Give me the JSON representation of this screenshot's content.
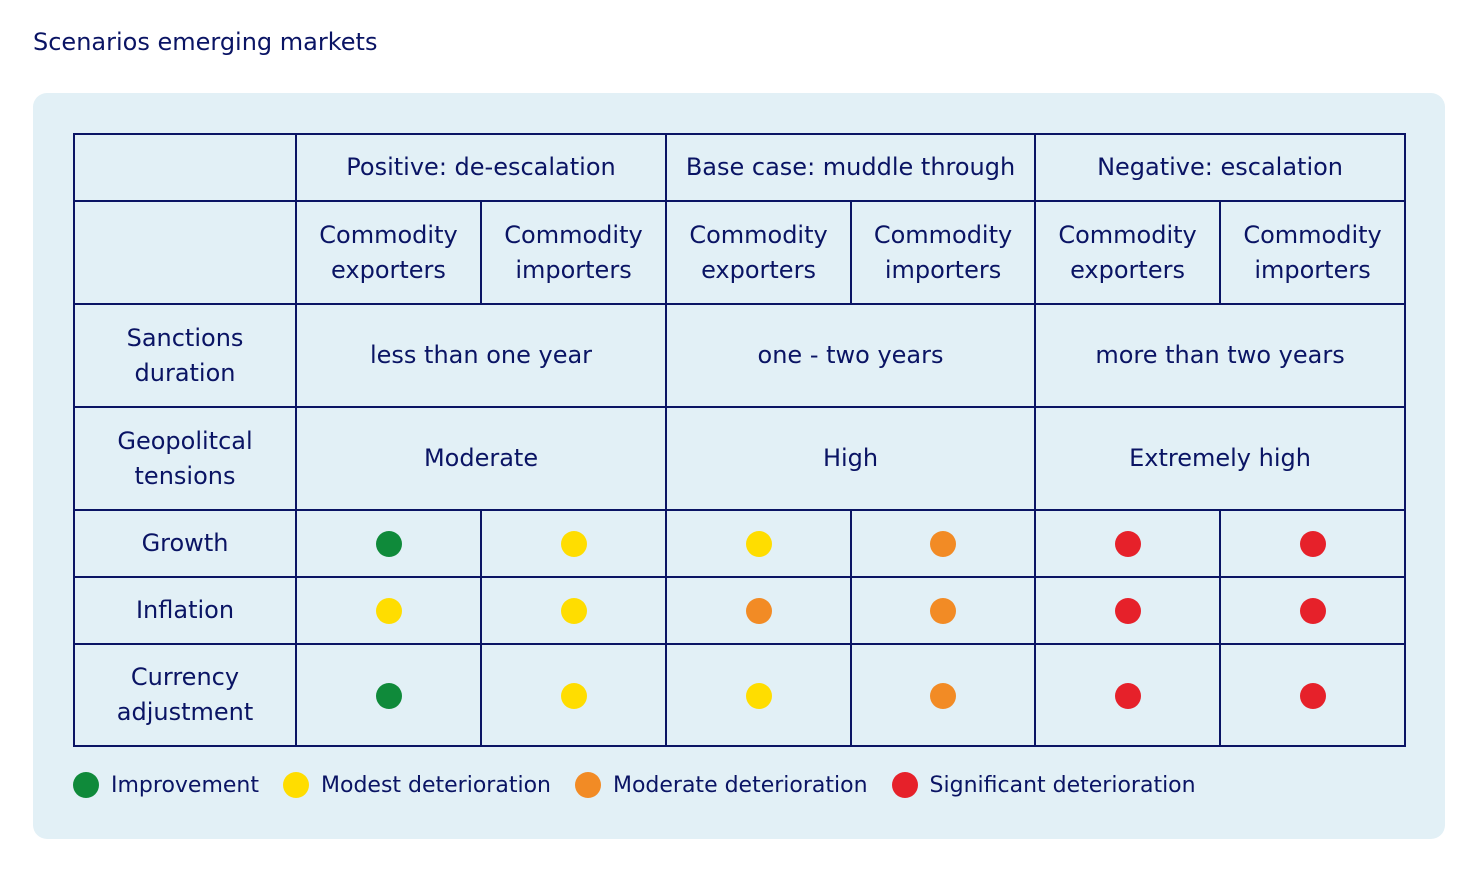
{
  "title": "Scenarios emerging markets",
  "colors": {
    "improvement": "#0f8a3a",
    "modest": "#ffdd00",
    "moderate": "#f28b25",
    "significant": "#e6212a"
  },
  "chart_data": {
    "type": "table",
    "scenarios": [
      "Positive: de-escalation",
      "Base case: muddle through",
      "Negative: escalation"
    ],
    "subgroups": [
      [
        "Commodity",
        "exporters"
      ],
      [
        "Commodity",
        "importers"
      ],
      [
        "Commodity",
        "exporters"
      ],
      [
        "Commodity",
        "importers"
      ],
      [
        "Commodity",
        "exporters"
      ],
      [
        "Commodity",
        "importers"
      ]
    ],
    "row_labels": {
      "sanctions": [
        "Sanctions",
        "duration"
      ],
      "tensions": [
        "Geopolitcal",
        "tensions"
      ],
      "growth": "Growth",
      "inflation": "Inflation",
      "currency": [
        "Currency",
        "adjustment"
      ]
    },
    "sanctions_duration": [
      "less than one year",
      "one - two years",
      "more than two years"
    ],
    "geopolitical_tensions": [
      "Moderate",
      "High",
      "Extremely high"
    ],
    "ratings": {
      "growth": [
        "improvement",
        "modest",
        "modest",
        "moderate",
        "significant",
        "significant"
      ],
      "inflation": [
        "modest",
        "modest",
        "moderate",
        "moderate",
        "significant",
        "significant"
      ],
      "currency": [
        "improvement",
        "modest",
        "modest",
        "moderate",
        "significant",
        "significant"
      ]
    },
    "legend": [
      {
        "key": "improvement",
        "label": "Improvement"
      },
      {
        "key": "modest",
        "label": "Modest deterioration"
      },
      {
        "key": "moderate",
        "label": "Moderate deterioration"
      },
      {
        "key": "significant",
        "label": "Significant deterioration"
      }
    ]
  }
}
